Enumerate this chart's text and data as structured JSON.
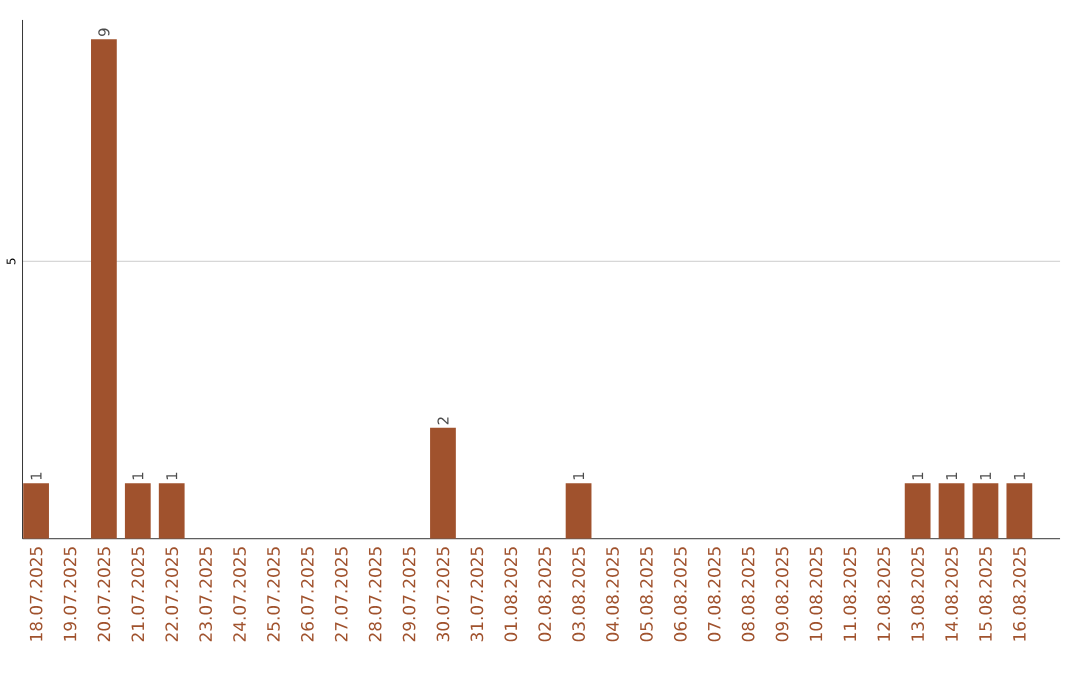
{
  "chart_data": {
    "type": "bar",
    "categories": [
      "18.07.2025",
      "19.07.2025",
      "20.07.2025",
      "21.07.2025",
      "22.07.2025",
      "23.07.2025",
      "24.07.2025",
      "25.07.2025",
      "26.07.2025",
      "27.07.2025",
      "28.07.2025",
      "29.07.2025",
      "30.07.2025",
      "31.07.2025",
      "01.08.2025",
      "02.08.2025",
      "03.08.2025",
      "04.08.2025",
      "05.08.2025",
      "06.08.2025",
      "07.08.2025",
      "08.08.2025",
      "09.08.2025",
      "10.08.2025",
      "11.08.2025",
      "12.08.2025",
      "13.08.2025",
      "14.08.2025",
      "15.08.2025",
      "16.08.2025"
    ],
    "values": [
      1,
      0,
      9,
      1,
      1,
      0,
      0,
      0,
      0,
      0,
      0,
      0,
      2,
      0,
      0,
      0,
      1,
      0,
      0,
      0,
      0,
      0,
      0,
      0,
      0,
      0,
      1,
      1,
      1,
      1
    ],
    "value_labels": [
      "1",
      null,
      "9",
      "1",
      "1",
      null,
      null,
      null,
      null,
      null,
      null,
      null,
      "2",
      null,
      null,
      null,
      "1",
      null,
      null,
      null,
      null,
      null,
      null,
      null,
      null,
      null,
      "1",
      "1",
      "1",
      "1"
    ],
    "color": "#a0522d",
    "ylim": [
      0,
      9.35
    ],
    "yticks": [
      5
    ],
    "grid": "y"
  }
}
